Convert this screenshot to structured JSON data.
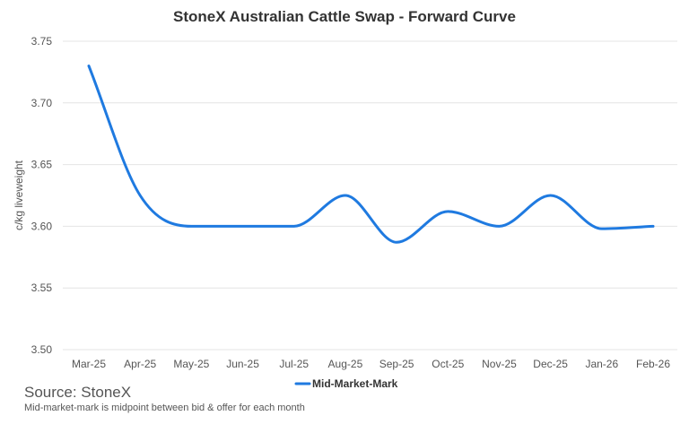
{
  "source": "Source: StoneX",
  "footnote": "Mid-market-mark is midpoint between bid & offer for each month",
  "colors": {
    "series": "#1f7ae0",
    "grid": "#e4e4e4",
    "text": "#333333"
  },
  "chart_data": {
    "type": "line",
    "title": "StoneX Australian Cattle Swap - Forward Curve",
    "xlabel": "",
    "ylabel": "c/kg liveweight",
    "categories": [
      "Mar-25",
      "Apr-25",
      "May-25",
      "Jun-25",
      "Jul-25",
      "Aug-25",
      "Sep-25",
      "Oct-25",
      "Nov-25",
      "Dec-25",
      "Jan-26",
      "Feb-26"
    ],
    "ylim": [
      3.5,
      3.75
    ],
    "yticks": [
      "3.50",
      "3.55",
      "3.60",
      "3.65",
      "3.70",
      "3.75"
    ],
    "grid": true,
    "legend_position": "bottom",
    "smooth": true,
    "series": [
      {
        "name": "Mid-Market-Mark",
        "values": [
          3.73,
          3.625,
          3.6,
          3.6,
          3.6,
          3.625,
          3.587,
          3.612,
          3.6,
          3.625,
          3.598,
          3.6
        ]
      }
    ]
  }
}
